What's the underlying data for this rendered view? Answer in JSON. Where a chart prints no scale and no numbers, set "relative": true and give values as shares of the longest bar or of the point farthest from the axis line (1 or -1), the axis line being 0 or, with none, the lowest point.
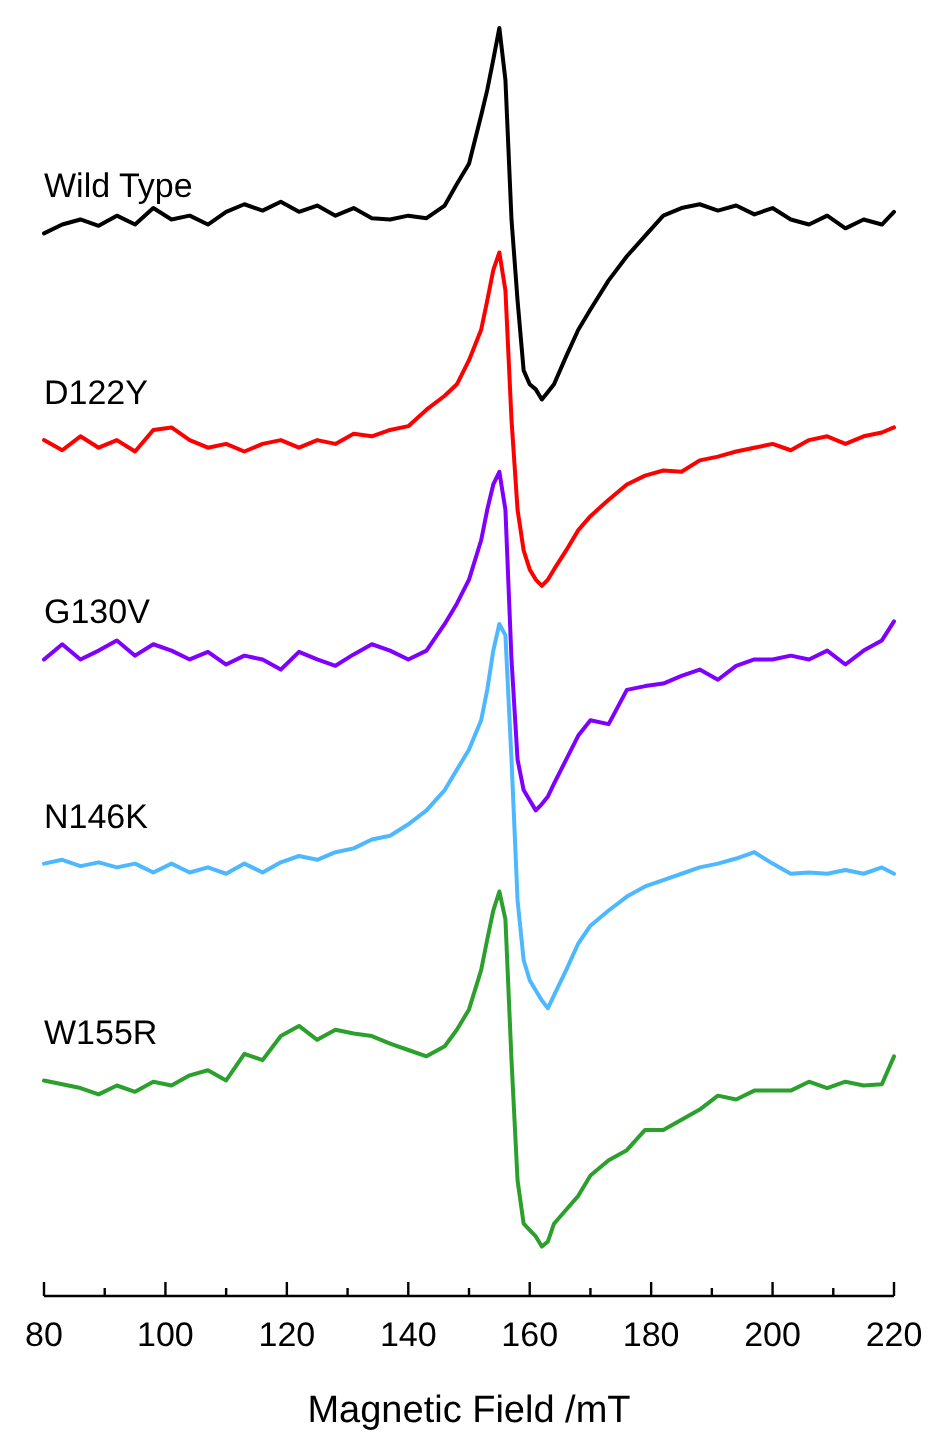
{
  "chart_data": {
    "type": "line",
    "relative": true,
    "xlabel": "Magnetic Field /mT",
    "xlim": [
      80,
      220
    ],
    "xticks": [
      80,
      {
        "value": 90,
        "label": null
      },
      100,
      {
        "value": 110,
        "label": null
      },
      120,
      {
        "value": 130,
        "label": null
      },
      140,
      {
        "value": 150,
        "label": null
      },
      160,
      {
        "value": 170,
        "label": null
      },
      180,
      {
        "value": 190,
        "label": null
      },
      200,
      {
        "value": 210,
        "label": null
      },
      220
    ],
    "x": [
      80,
      83,
      86,
      89,
      92,
      95,
      98,
      101,
      104,
      107,
      110,
      113,
      116,
      119,
      122,
      125,
      128,
      131,
      134,
      137,
      140,
      143,
      146,
      148,
      150,
      152,
      153,
      154,
      155,
      156,
      157,
      158,
      159,
      160,
      161,
      162,
      163,
      164,
      166,
      168,
      170,
      173,
      176,
      179,
      182,
      185,
      188,
      191,
      194,
      197,
      200,
      203,
      206,
      209,
      212,
      215,
      218,
      220
    ],
    "series": [
      {
        "name": "Wild Type",
        "color": "#000000",
        "values": [
          0.838,
          0.845,
          0.849,
          0.844,
          0.852,
          0.845,
          0.858,
          0.849,
          0.852,
          0.845,
          0.855,
          0.861,
          0.856,
          0.863,
          0.855,
          0.86,
          0.852,
          0.858,
          0.85,
          0.849,
          0.852,
          0.85,
          0.86,
          0.877,
          0.893,
          0.931,
          0.951,
          0.975,
          1,
          0.959,
          0.849,
          0.785,
          0.73,
          0.719,
          0.715,
          0.707,
          0.713,
          0.719,
          0.741,
          0.762,
          0.778,
          0.801,
          0.82,
          0.836,
          0.852,
          0.858,
          0.861,
          0.856,
          0.86,
          0.853,
          0.858,
          0.849,
          0.845,
          0.852,
          0.842,
          0.849,
          0.845,
          0.855
        ]
      },
      {
        "name": "D122Y",
        "color": "#ff0000",
        "values": [
          0.675,
          0.667,
          0.678,
          0.669,
          0.675,
          0.666,
          0.683,
          0.685,
          0.675,
          0.669,
          0.672,
          0.666,
          0.672,
          0.675,
          0.669,
          0.675,
          0.672,
          0.68,
          0.678,
          0.683,
          0.686,
          0.699,
          0.71,
          0.719,
          0.738,
          0.762,
          0.785,
          0.809,
          0.823,
          0.793,
          0.691,
          0.62,
          0.588,
          0.573,
          0.565,
          0.56,
          0.565,
          0.573,
          0.588,
          0.604,
          0.615,
          0.628,
          0.64,
          0.647,
          0.651,
          0.65,
          0.659,
          0.662,
          0.666,
          0.669,
          0.672,
          0.667,
          0.675,
          0.678,
          0.672,
          0.678,
          0.681,
          0.685
        ]
      },
      {
        "name": "G130V",
        "color": "#8000ff",
        "values": [
          0.502,
          0.514,
          0.502,
          0.509,
          0.517,
          0.505,
          0.514,
          0.509,
          0.502,
          0.508,
          0.498,
          0.505,
          0.502,
          0.494,
          0.508,
          0.502,
          0.497,
          0.506,
          0.514,
          0.509,
          0.502,
          0.509,
          0.53,
          0.546,
          0.565,
          0.596,
          0.62,
          0.64,
          0.65,
          0.62,
          0.502,
          0.423,
          0.399,
          0.391,
          0.383,
          0.388,
          0.394,
          0.404,
          0.423,
          0.442,
          0.454,
          0.451,
          0.478,
          0.481,
          0.483,
          0.489,
          0.494,
          0.486,
          0.497,
          0.502,
          0.502,
          0.505,
          0.502,
          0.509,
          0.498,
          0.509,
          0.517,
          0.532
        ]
      },
      {
        "name": "N146K",
        "color": "#4db8ff",
        "values": [
          0.341,
          0.344,
          0.339,
          0.342,
          0.338,
          0.341,
          0.334,
          0.341,
          0.334,
          0.338,
          0.333,
          0.341,
          0.334,
          0.342,
          0.347,
          0.344,
          0.35,
          0.353,
          0.36,
          0.363,
          0.372,
          0.383,
          0.399,
          0.415,
          0.431,
          0.454,
          0.478,
          0.509,
          0.53,
          0.521,
          0.423,
          0.312,
          0.265,
          0.249,
          0.241,
          0.233,
          0.227,
          0.237,
          0.257,
          0.278,
          0.292,
          0.304,
          0.315,
          0.323,
          0.328,
          0.333,
          0.338,
          0.341,
          0.345,
          0.35,
          0.341,
          0.333,
          0.334,
          0.333,
          0.336,
          0.333,
          0.338,
          0.333
        ]
      },
      {
        "name": "W155R",
        "color": "#2ca02c",
        "values": [
          0.17,
          0.167,
          0.164,
          0.159,
          0.166,
          0.161,
          0.169,
          0.166,
          0.174,
          0.178,
          0.17,
          0.191,
          0.186,
          0.205,
          0.213,
          0.202,
          0.21,
          0.207,
          0.205,
          0.199,
          0.194,
          0.189,
          0.197,
          0.21,
          0.226,
          0.257,
          0.281,
          0.304,
          0.319,
          0.297,
          0.186,
          0.091,
          0.057,
          0.052,
          0.047,
          0.039,
          0.043,
          0.057,
          0.068,
          0.079,
          0.095,
          0.107,
          0.115,
          0.131,
          0.131,
          0.139,
          0.147,
          0.158,
          0.155,
          0.162,
          0.162,
          0.162,
          0.169,
          0.164,
          0.169,
          0.166,
          0.167,
          0.189
        ]
      }
    ]
  }
}
